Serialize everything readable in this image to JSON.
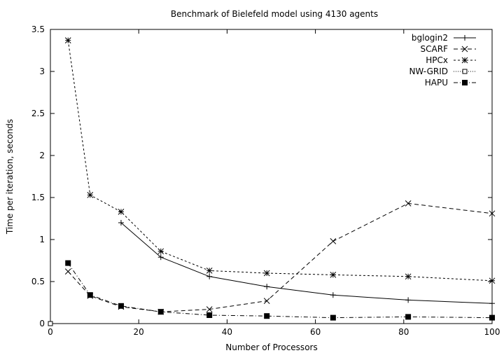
{
  "chart_data": {
    "type": "line",
    "title": "Benchmark of Bielefeld model using 4130 agents",
    "xlabel": "Number of Processors",
    "ylabel": "Time per iteration, seconds",
    "xlim": [
      0,
      100
    ],
    "ylim": [
      0,
      3.5
    ],
    "xticks": [
      0,
      20,
      40,
      60,
      80,
      100
    ],
    "yticks": [
      0,
      0.5,
      1,
      1.5,
      2,
      2.5,
      3,
      3.5
    ],
    "ytick_labels": [
      "0",
      "0.5",
      "1",
      "1.5",
      "2",
      "2.5",
      "3",
      "3.5"
    ],
    "grid": false,
    "legend_position": "top-right",
    "series": [
      {
        "name": "bglogin2",
        "marker": "plus",
        "dash": "solid",
        "x": [
          16,
          25,
          36,
          49,
          64,
          81,
          100
        ],
        "values": [
          1.2,
          0.79,
          0.56,
          0.44,
          0.34,
          0.28,
          0.24
        ]
      },
      {
        "name": "SCARF",
        "marker": "cross",
        "dash": "dashed",
        "x": [
          4,
          9,
          16,
          25,
          36,
          49,
          64,
          81,
          100
        ],
        "values": [
          0.62,
          0.33,
          0.2,
          0.14,
          0.17,
          0.27,
          0.98,
          1.43,
          1.31
        ]
      },
      {
        "name": "HPCx",
        "marker": "star",
        "dash": "short-dash",
        "x": [
          4,
          9,
          16,
          25,
          36,
          49,
          64,
          81,
          100
        ],
        "values": [
          3.37,
          1.53,
          1.33,
          0.86,
          0.63,
          0.6,
          0.58,
          0.56,
          0.51
        ]
      },
      {
        "name": "NW-GRID",
        "marker": "open-square",
        "dash": "dotted",
        "x": [
          0
        ],
        "values": [
          0
        ]
      },
      {
        "name": "HAPU",
        "marker": "filled-square",
        "dash": "dash-dot",
        "x": [
          4,
          9,
          16,
          25,
          36,
          49,
          64,
          81,
          100
        ],
        "values": [
          0.72,
          0.34,
          0.21,
          0.14,
          0.1,
          0.09,
          0.07,
          0.08,
          0.07
        ]
      }
    ]
  }
}
